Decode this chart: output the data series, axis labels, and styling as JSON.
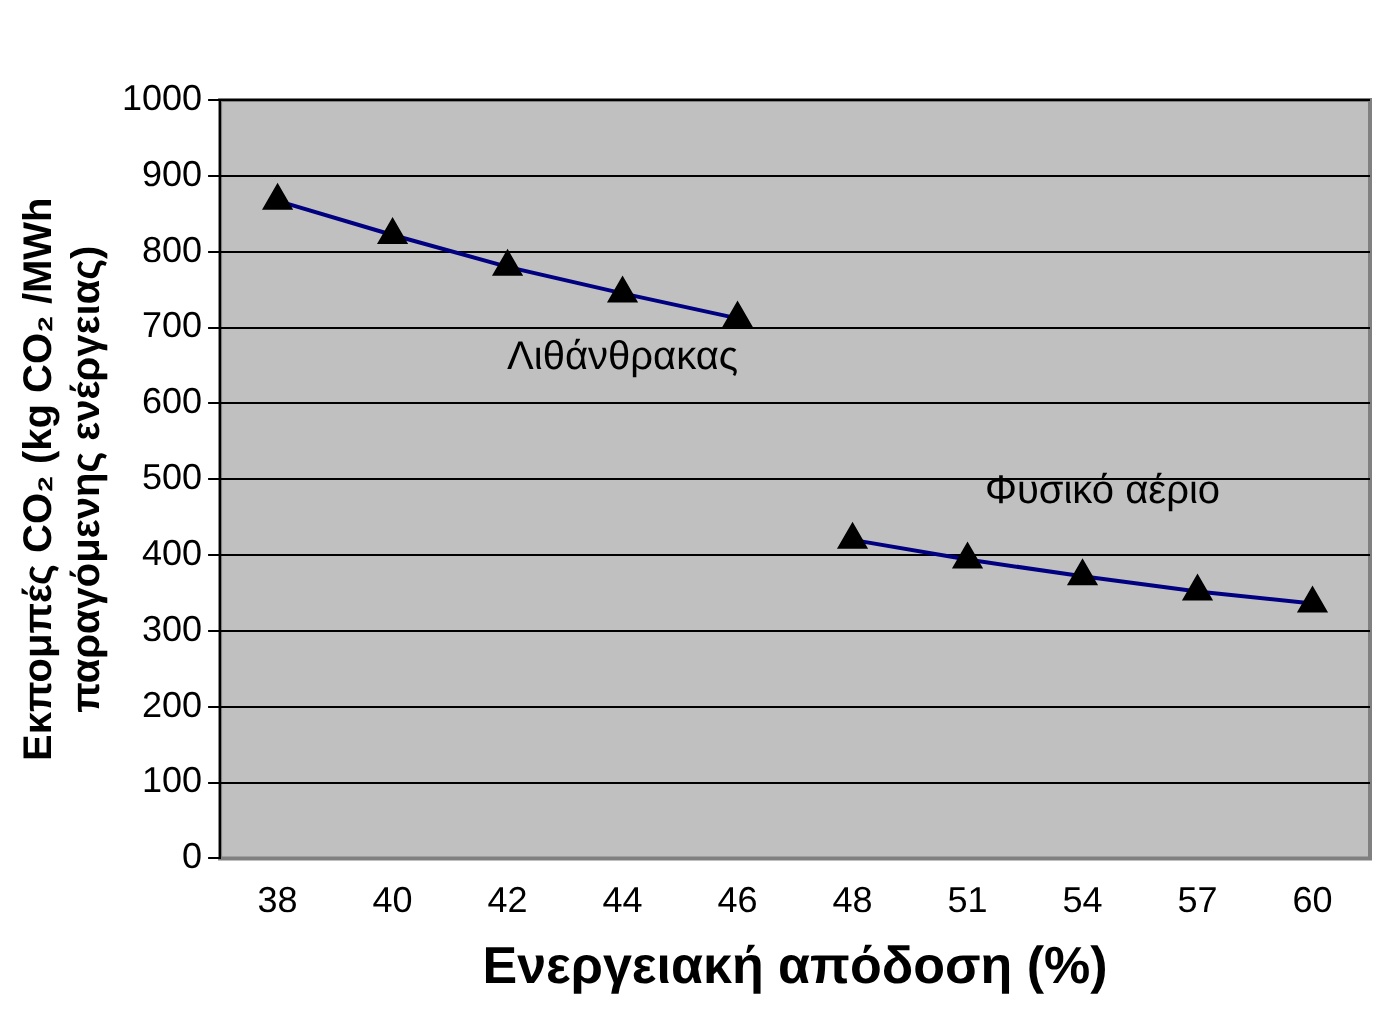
{
  "chart_data": {
    "type": "line",
    "xlabel": "Ενεργειακή απόδοση (%)",
    "ylabel": "Εκπομπές CO₂ (kg CO₂ /MWh\nπαραγόμενης ενέργειας)",
    "categories": [
      "38",
      "40",
      "42",
      "44",
      "46",
      "48",
      "51",
      "54",
      "57",
      "60"
    ],
    "series": [
      {
        "name": "Λιθάνθρακας",
        "color": "#000080",
        "values": [
          867,
          822,
          780,
          745,
          712,
          null,
          null,
          null,
          null,
          null
        ]
      },
      {
        "name": "Φυσικό αέριο",
        "color": "#000080",
        "values": [
          null,
          null,
          null,
          null,
          null,
          420,
          394,
          372,
          352,
          336
        ]
      }
    ],
    "ylim": [
      0,
      1000
    ],
    "yticks": [
      0,
      100,
      200,
      300,
      400,
      500,
      600,
      700,
      800,
      900,
      1000
    ],
    "grid": "y",
    "legend": false,
    "marker": "triangle",
    "line_style": "solid"
  }
}
